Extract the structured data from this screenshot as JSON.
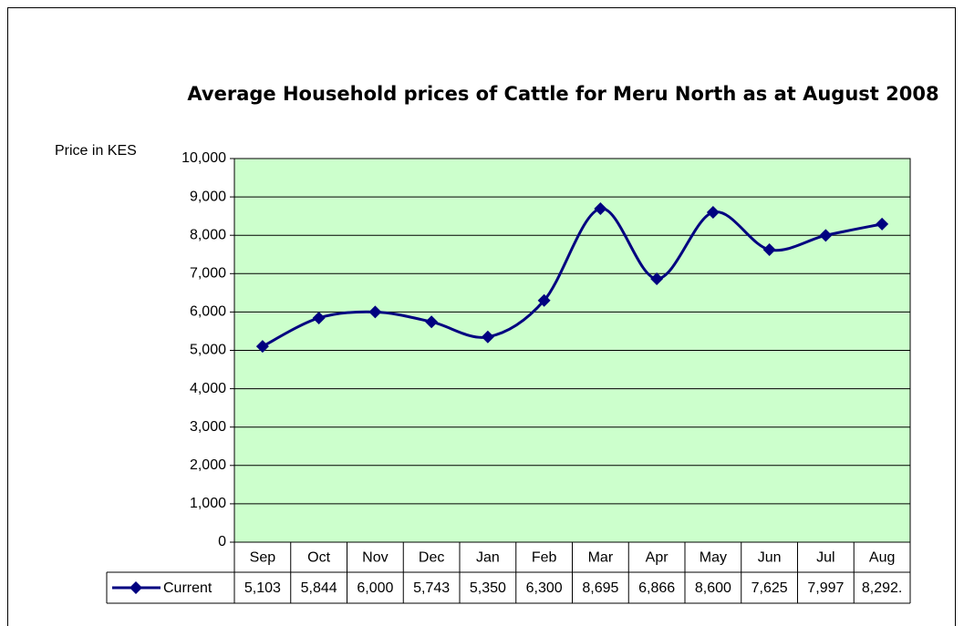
{
  "chart_data": {
    "type": "line",
    "title": "Average Household prices of Cattle for Meru North as at August 2008",
    "y_label": "Price in KES",
    "categories": [
      "Sep",
      "Oct",
      "Nov",
      "Dec",
      "Jan",
      "Feb",
      "Mar",
      "Apr",
      "May",
      "Jun",
      "Jul",
      "Aug"
    ],
    "series": [
      {
        "name": "Current",
        "color": "#000080",
        "values": [
          5103,
          5844,
          6000,
          5743,
          5350,
          6300,
          8695,
          6866,
          8600,
          7625,
          7997,
          8292
        ],
        "value_labels": [
          "5,103",
          "5,844",
          "6,000",
          "5,743",
          "5,350",
          "6,300",
          "8,695",
          "6,866",
          "8,600",
          "7,625",
          "7,997",
          "8,292."
        ]
      }
    ],
    "ylim": [
      0,
      10000
    ],
    "yticks": [
      0,
      {
        "value": 1000,
        "label": "1,000"
      },
      {
        "value": 2000,
        "label": "2,000"
      },
      {
        "value": 3000,
        "label": "3,000"
      },
      {
        "value": 4000,
        "label": "4,000"
      },
      {
        "value": 5000,
        "label": "5,000"
      },
      {
        "value": 6000,
        "label": "6,000"
      },
      {
        "value": 7000,
        "label": "7,000"
      },
      {
        "value": 8000,
        "label": "8,000"
      },
      {
        "value": 9000,
        "label": "9,000"
      },
      {
        "value": 10000,
        "label": "10,000"
      }
    ],
    "grid": true,
    "plot_background": "#ccffcc",
    "smooth": true
  }
}
